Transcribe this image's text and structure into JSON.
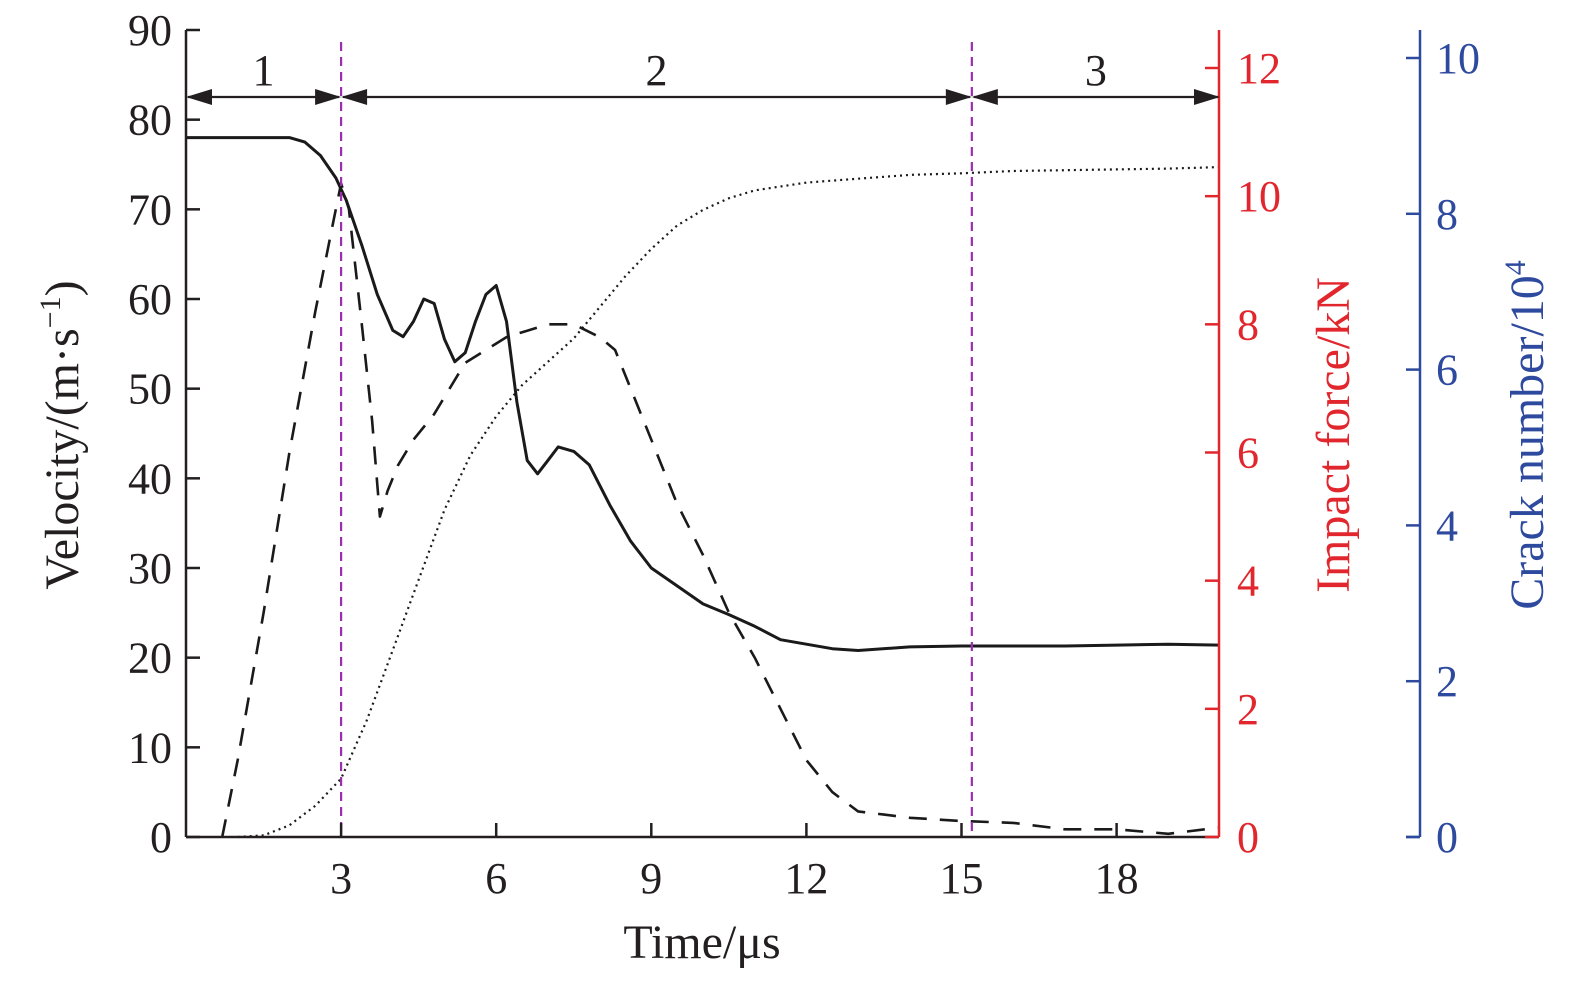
{
  "chart_data": {
    "type": "line",
    "xlabel": "Time/μs",
    "x_ticks": [
      3,
      6,
      9,
      12,
      15,
      18
    ],
    "xlim": [
      0,
      20
    ],
    "axes": {
      "velocity": {
        "label": "Velocity/(m·s",
        "label_sup": "−1",
        "label_close": ")",
        "ylim": [
          0,
          90
        ],
        "ticks": [
          0,
          10,
          20,
          30,
          40,
          50,
          60,
          70,
          80,
          90
        ],
        "color": "#231f20"
      },
      "force": {
        "label": "Impact force/kN",
        "ylim": [
          0,
          12
        ],
        "ticks": [
          0,
          2,
          4,
          6,
          8,
          10,
          12
        ],
        "color": "#e1272d"
      },
      "crack": {
        "label": "Crack number/10",
        "label_sup": "4",
        "ylim": [
          0,
          10
        ],
        "ticks": [
          0,
          2,
          4,
          6,
          8,
          10
        ],
        "color": "#2e4a9e"
      }
    },
    "stages": [
      {
        "label": "1",
        "from": 0,
        "to": 3.0
      },
      {
        "label": "2",
        "from": 3.0,
        "to": 15.2
      },
      {
        "label": "3",
        "from": 15.2,
        "to": 20
      }
    ],
    "stage_boundaries": [
      3.0,
      15.2
    ],
    "boundary_color": "#9b2fae",
    "series": [
      {
        "axis": "velocity",
        "style": "solid",
        "x": [
          0,
          1.5,
          2.0,
          2.3,
          2.6,
          2.9,
          3.1,
          3.4,
          3.7,
          4.0,
          4.2,
          4.4,
          4.6,
          4.8,
          5.0,
          5.2,
          5.4,
          5.6,
          5.8,
          6.0,
          6.2,
          6.4,
          6.6,
          6.8,
          7.0,
          7.2,
          7.5,
          7.8,
          8.2,
          8.6,
          9.0,
          9.5,
          10.0,
          10.5,
          11.0,
          11.5,
          12.0,
          12.5,
          13.0,
          14.0,
          15.0,
          16.0,
          17.0,
          18.0,
          19.0,
          20.0
        ],
        "y": [
          78,
          78,
          78,
          77.5,
          76,
          73.5,
          71,
          66,
          60.5,
          56.5,
          55.8,
          57.5,
          60.0,
          59.5,
          55.5,
          53.0,
          54.0,
          57.5,
          60.5,
          61.5,
          57.5,
          48.5,
          42.0,
          40.5,
          42.0,
          43.5,
          43.0,
          41.5,
          37.0,
          33.0,
          30.0,
          28.0,
          26.0,
          24.8,
          23.5,
          22.0,
          21.5,
          21.0,
          20.8,
          21.2,
          21.3,
          21.3,
          21.3,
          21.4,
          21.5,
          21.4
        ]
      },
      {
        "axis": "force",
        "style": "dashed",
        "x": [
          0.7,
          1.0,
          1.5,
          2.0,
          2.5,
          2.85,
          3.0,
          3.15,
          3.4,
          3.6,
          3.75,
          3.9,
          4.1,
          4.4,
          4.8,
          5.1,
          5.4,
          5.8,
          6.2,
          6.6,
          7.0,
          7.5,
          8.0,
          8.3,
          8.6,
          9.0,
          9.5,
          10.0,
          10.5,
          11.0,
          11.5,
          12.0,
          12.5,
          13.0,
          13.5,
          14.0,
          15.0,
          16.0,
          17.0,
          18.0,
          19.0,
          20.0
        ],
        "y": [
          0,
          1.2,
          3.5,
          6.0,
          8.2,
          9.6,
          10.2,
          9.8,
          8.0,
          6.5,
          5.0,
          5.4,
          5.8,
          6.2,
          6.6,
          7.0,
          7.4,
          7.6,
          7.8,
          7.9,
          8.0,
          8.0,
          7.8,
          7.6,
          7.0,
          6.2,
          5.2,
          4.4,
          3.5,
          2.8,
          2.0,
          1.2,
          0.7,
          0.4,
          0.35,
          0.3,
          0.25,
          0.22,
          0.12,
          0.12,
          0.05,
          0.15
        ]
      },
      {
        "axis": "crack",
        "style": "dotted",
        "x": [
          1.0,
          1.5,
          2.0,
          2.5,
          3.0,
          3.5,
          4.0,
          4.5,
          5.0,
          5.5,
          6.0,
          6.5,
          7.0,
          7.5,
          8.0,
          8.5,
          9.0,
          9.5,
          10.0,
          10.5,
          11.0,
          12.0,
          13.0,
          14.0,
          15.0,
          16.0,
          17.0,
          18.0,
          19.0,
          20.0
        ],
        "y": [
          0,
          0.02,
          0.15,
          0.4,
          0.75,
          1.5,
          2.4,
          3.3,
          4.2,
          4.9,
          5.4,
          5.8,
          6.1,
          6.4,
          6.8,
          7.2,
          7.55,
          7.85,
          8.05,
          8.2,
          8.3,
          8.4,
          8.45,
          8.5,
          8.52,
          8.55,
          8.56,
          8.57,
          8.58,
          8.6
        ]
      }
    ]
  }
}
